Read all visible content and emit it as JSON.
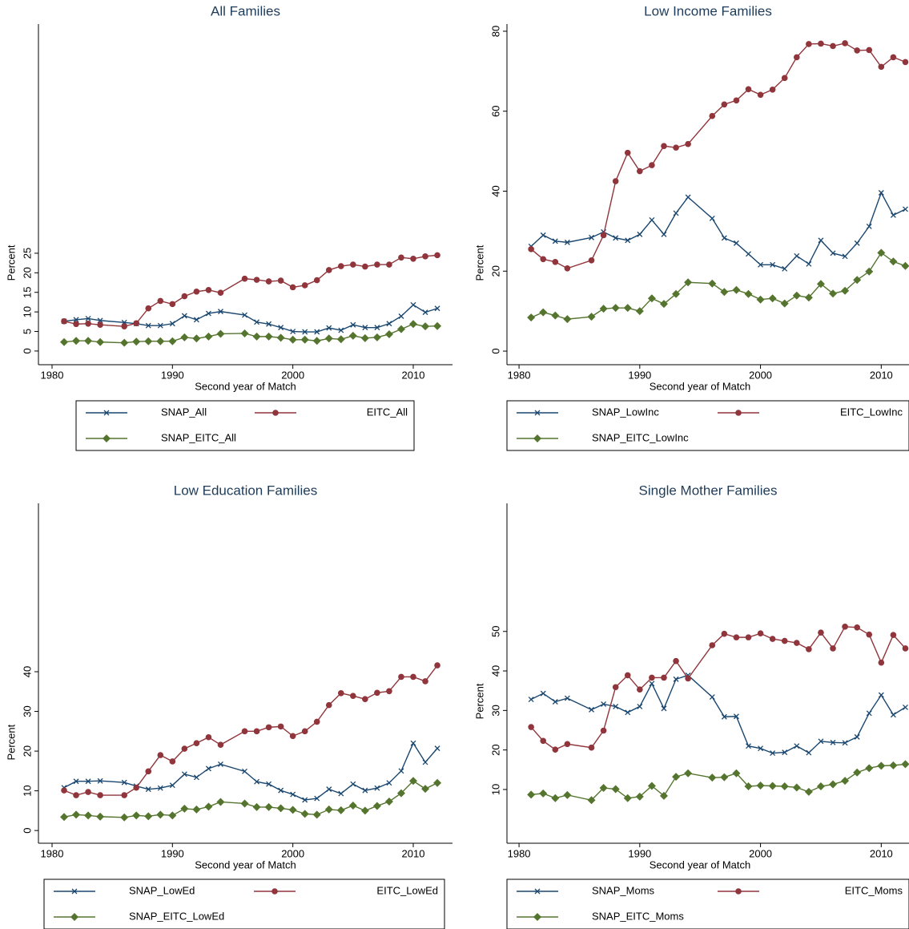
{
  "chart_data": [
    {
      "type": "line",
      "title": "All Families",
      "x_label": "Second year of Match",
      "y_label": "Percent",
      "x": [
        1981,
        1982,
        1983,
        1984,
        1986,
        1987,
        1988,
        1989,
        1990,
        1991,
        1992,
        1993,
        1994,
        1996,
        1997,
        1998,
        1999,
        2000,
        2001,
        2002,
        2003,
        2004,
        2005,
        2006,
        2007,
        2008,
        2009,
        2010,
        2011,
        2012
      ],
      "series": [
        {
          "name": "SNAP_All",
          "color": "#1a476f",
          "marker": "x",
          "values": [
            7.6,
            8.0,
            8.3,
            7.8,
            7.3,
            7.0,
            6.5,
            6.5,
            7.0,
            9.0,
            8.0,
            9.6,
            10.1,
            9.2,
            7.4,
            6.9,
            6.0,
            5.0,
            4.9,
            4.9,
            5.9,
            5.3,
            6.7,
            6.0,
            6.0,
            7.0,
            8.9,
            11.8,
            9.9,
            10.9
          ]
        },
        {
          "name": "EITC_All",
          "color": "#90353b",
          "marker": "circle",
          "values": [
            7.6,
            6.9,
            7.0,
            6.7,
            6.3,
            7.1,
            10.9,
            12.8,
            12.0,
            14.0,
            15.2,
            15.6,
            14.9,
            18.5,
            18.2,
            17.8,
            18.0,
            16.3,
            16.8,
            18.1,
            20.7,
            21.7,
            22.1,
            21.6,
            22.1,
            22.1,
            23.9,
            23.6,
            24.2,
            24.5
          ]
        },
        {
          "name": "SNAP_EITC_All",
          "color": "#55752f",
          "marker": "diamond",
          "values": [
            2.3,
            2.6,
            2.6,
            2.3,
            2.1,
            2.4,
            2.5,
            2.5,
            2.5,
            3.5,
            3.2,
            3.7,
            4.4,
            4.5,
            3.7,
            3.7,
            3.4,
            2.9,
            2.9,
            2.6,
            3.2,
            3.0,
            3.9,
            3.3,
            3.5,
            4.3,
            5.6,
            6.9,
            6.3,
            6.4
          ]
        }
      ],
      "xlim": [
        1978.87,
        2013.26
      ],
      "ylim": [
        -3.5,
        83.6
      ],
      "xticks": [
        1980,
        1990,
        2000,
        2010
      ],
      "yticks": [
        0,
        5,
        10,
        15,
        20,
        25
      ]
    },
    {
      "type": "line",
      "title": "Low Income Families",
      "x_label": "Second year of Match",
      "y_label": "Percent",
      "x": [
        1981,
        1982,
        1983,
        1984,
        1986,
        1987,
        1988,
        1989,
        1990,
        1991,
        1992,
        1993,
        1994,
        1996,
        1997,
        1998,
        1999,
        2000,
        2001,
        2002,
        2003,
        2004,
        2005,
        2006,
        2007,
        2008,
        2009,
        2010,
        2011,
        2012
      ],
      "series": [
        {
          "name": "SNAP_LowInc",
          "color": "#1a476f",
          "marker": "x",
          "values": [
            26.2,
            29.0,
            27.5,
            27.2,
            28.4,
            29.8,
            28.3,
            27.7,
            29.2,
            32.8,
            29.2,
            34.5,
            38.5,
            33.2,
            28.3,
            27.0,
            24.3,
            21.6,
            21.6,
            20.6,
            23.8,
            21.8,
            27.7,
            24.5,
            23.7,
            27.0,
            31.2,
            39.6,
            34.0,
            35.5
          ]
        },
        {
          "name": "EITC_LowInc",
          "color": "#90353b",
          "marker": "circle",
          "values": [
            25.5,
            23.0,
            22.3,
            20.7,
            22.7,
            29.0,
            42.5,
            49.6,
            45.0,
            46.5,
            51.3,
            50.9,
            51.8,
            58.8,
            61.7,
            62.7,
            65.5,
            64.1,
            65.4,
            68.3,
            73.5,
            76.8,
            76.9,
            76.3,
            77.0,
            75.2,
            75.3,
            71.1,
            73.5,
            72.3
          ]
        },
        {
          "name": "SNAP_EITC_LowInc",
          "color": "#55752f",
          "marker": "diamond",
          "values": [
            8.4,
            9.7,
            8.9,
            8.0,
            8.6,
            10.6,
            10.8,
            10.8,
            10.0,
            13.2,
            11.8,
            14.3,
            17.2,
            16.9,
            14.8,
            15.3,
            14.3,
            12.9,
            13.2,
            11.9,
            13.9,
            13.4,
            16.8,
            14.4,
            15.1,
            17.8,
            19.9,
            24.6,
            22.4,
            21.3
          ]
        }
      ],
      "xlim": [
        1979.0,
        2012.3
      ],
      "ylim": [
        -3.4,
        81.8
      ],
      "xticks": [
        1980,
        1990,
        2000,
        2010
      ],
      "yticks": [
        0,
        20,
        40,
        60,
        80
      ]
    },
    {
      "type": "line",
      "title": "Low Education Families",
      "x_label": "Second year of Match",
      "y_label": "Percent",
      "x": [
        1981,
        1982,
        1983,
        1984,
        1986,
        1987,
        1988,
        1989,
        1990,
        1991,
        1992,
        1993,
        1994,
        1996,
        1997,
        1998,
        1999,
        2000,
        2001,
        2002,
        2003,
        2004,
        2005,
        2006,
        2007,
        2008,
        2009,
        2010,
        2011,
        2012
      ],
      "series": [
        {
          "name": "SNAP_LowEd",
          "color": "#1a476f",
          "marker": "x",
          "values": [
            10.8,
            12.4,
            12.4,
            12.5,
            12.1,
            11.2,
            10.4,
            10.7,
            11.4,
            14.2,
            13.4,
            15.6,
            16.7,
            14.9,
            12.3,
            11.7,
            10.1,
            9.1,
            7.7,
            8.1,
            10.4,
            9.3,
            11.7,
            10.1,
            10.7,
            12.0,
            15.0,
            22.0,
            17.2,
            20.7
          ]
        },
        {
          "name": "EITC_LowEd",
          "color": "#90353b",
          "marker": "circle",
          "values": [
            10.1,
            8.9,
            9.7,
            8.9,
            8.9,
            10.8,
            14.9,
            19.0,
            17.4,
            20.6,
            22.0,
            23.5,
            21.6,
            25.0,
            25.0,
            26.0,
            26.2,
            23.8,
            25.0,
            27.4,
            31.6,
            34.6,
            33.9,
            33.1,
            34.7,
            35.1,
            38.7,
            38.7,
            37.6,
            41.6
          ]
        },
        {
          "name": "SNAP_EITC_LowEd",
          "color": "#55752f",
          "marker": "diamond",
          "values": [
            3.4,
            4.0,
            3.8,
            3.5,
            3.3,
            3.8,
            3.6,
            4.0,
            3.8,
            5.5,
            5.3,
            6.0,
            7.2,
            6.8,
            5.9,
            5.9,
            5.6,
            5.2,
            4.2,
            4.0,
            5.3,
            5.1,
            6.3,
            5.0,
            6.2,
            7.3,
            9.4,
            12.5,
            10.5,
            12.0
          ]
        }
      ],
      "xlim": [
        1978.87,
        2013.26
      ],
      "ylim": [
        -3.2,
        82.4
      ],
      "xticks": [
        1980,
        1990,
        2000,
        2010
      ],
      "yticks": [
        0,
        10,
        20,
        30,
        40
      ]
    },
    {
      "type": "line",
      "title": "Single Mother Families",
      "x_label": "Second year of Match",
      "y_label": "Percent",
      "x": [
        1981,
        1982,
        1983,
        1984,
        1986,
        1987,
        1988,
        1989,
        1990,
        1991,
        1992,
        1993,
        1994,
        1996,
        1997,
        1998,
        1999,
        2000,
        2001,
        2002,
        2003,
        2004,
        2005,
        2006,
        2007,
        2008,
        2009,
        2010,
        2011,
        2012
      ],
      "series": [
        {
          "name": "SNAP_Moms",
          "color": "#1a476f",
          "marker": "x",
          "values": [
            32.8,
            34.3,
            32.2,
            33.1,
            30.2,
            31.6,
            31.0,
            29.5,
            31.0,
            36.8,
            30.5,
            37.9,
            38.9,
            33.4,
            28.4,
            28.5,
            21.0,
            20.4,
            19.2,
            19.4,
            21.0,
            19.3,
            22.2,
            21.9,
            21.8,
            23.3,
            29.3,
            33.9,
            28.9,
            30.8
          ]
        },
        {
          "name": "EITC_Moms",
          "color": "#90353b",
          "marker": "circle",
          "values": [
            25.8,
            22.3,
            20.1,
            21.5,
            20.6,
            24.9,
            35.9,
            38.9,
            35.3,
            38.3,
            38.3,
            42.5,
            38.1,
            46.5,
            49.4,
            48.5,
            48.5,
            49.5,
            48.1,
            47.6,
            47.1,
            45.5,
            49.7,
            45.7,
            51.2,
            51.0,
            49.2,
            42.1,
            49.1,
            45.7
          ]
        },
        {
          "name": "SNAP_EITC_Moms",
          "color": "#55752f",
          "marker": "diamond",
          "values": [
            8.7,
            9.0,
            7.8,
            8.6,
            7.3,
            10.4,
            10.1,
            7.8,
            8.2,
            10.9,
            8.4,
            13.2,
            14.1,
            13.0,
            13.1,
            14.1,
            10.8,
            11.0,
            10.9,
            10.8,
            10.5,
            9.4,
            10.8,
            11.3,
            12.2,
            14.3,
            15.4,
            16.0,
            16.1,
            16.4
          ]
        }
      ],
      "xlim": [
        1979.0,
        2012.3
      ],
      "ylim": [
        -3.6,
        82.4
      ],
      "xticks": [
        1980,
        1990,
        2000,
        2010
      ],
      "yticks": [
        10,
        20,
        30,
        40,
        50
      ]
    }
  ]
}
